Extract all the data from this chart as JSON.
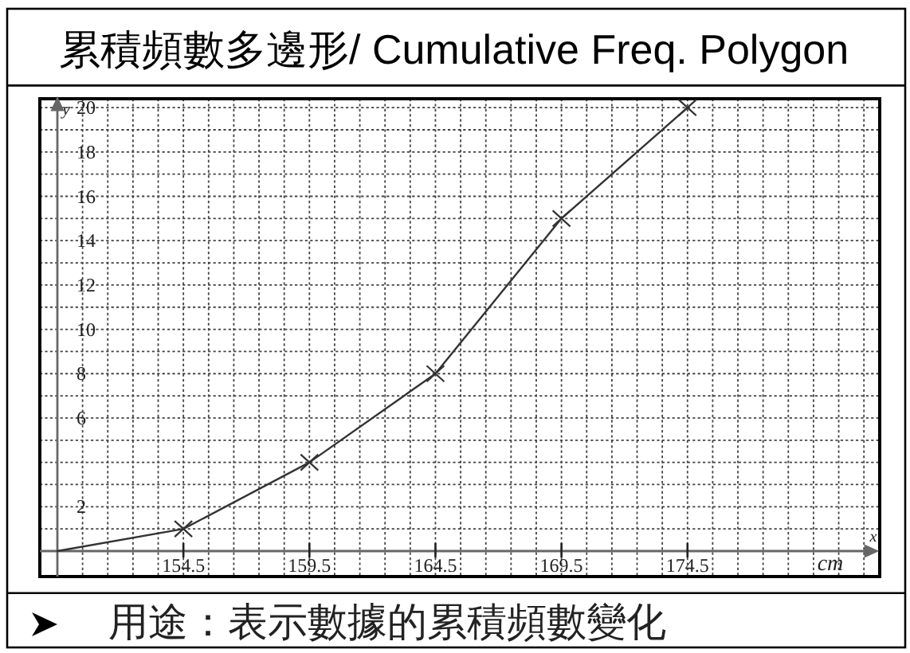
{
  "chart_data": {
    "type": "line",
    "title": "累積頻數多邊形/ Cumulative Freq. Polygon",
    "xlabel": "x",
    "ylabel": "y",
    "annotations": [
      "cm",
      "用途：表示數據的累積頻數變化"
    ],
    "series": [
      {
        "type": "line",
        "x": [
          149.5,
          154.5,
          159.5,
          164.5,
          169.5,
          174.5
        ],
        "values": [
          0,
          1,
          4,
          8,
          15,
          20
        ],
        "color": "#333333",
        "marker": "none"
      },
      {
        "type": "scatter",
        "x": [
          154.5,
          159.5,
          164.5,
          169.5,
          174.5
        ],
        "values": [
          1,
          4,
          8,
          15,
          20
        ],
        "color": "#333333",
        "marker": "cross"
      }
    ],
    "xlim": [
      149.5,
      182
    ],
    "ylim": [
      0,
      20.4
    ],
    "xticks": [
      {
        "value": 150.5,
        "label": null
      },
      {
        "value": 151.5,
        "label": null
      },
      {
        "value": 152.5,
        "label": null
      },
      {
        "value": 153.5,
        "label": null
      },
      154.5,
      {
        "value": 155.5,
        "label": null
      },
      {
        "value": 156.5,
        "label": null
      },
      {
        "value": 157.5,
        "label": null
      },
      {
        "value": 158.5,
        "label": null
      },
      159.5,
      {
        "value": 160.5,
        "label": null
      },
      {
        "value": 161.5,
        "label": null
      },
      {
        "value": 162.5,
        "label": null
      },
      {
        "value": 163.5,
        "label": null
      },
      164.5,
      {
        "value": 165.5,
        "label": null
      },
      {
        "value": 166.5,
        "label": null
      },
      {
        "value": 167.5,
        "label": null
      },
      {
        "value": 168.5,
        "label": null
      },
      169.5,
      {
        "value": 170.5,
        "label": null
      },
      {
        "value": 171.5,
        "label": null
      },
      {
        "value": 172.5,
        "label": null
      },
      {
        "value": 173.5,
        "label": null
      },
      174.5,
      {
        "value": 175.5,
        "label": null
      },
      {
        "value": 176.5,
        "label": null
      },
      {
        "value": 177.5,
        "label": null
      },
      {
        "value": 178.5,
        "label": null
      },
      {
        "value": 179.5,
        "label": null
      },
      {
        "value": 180.5,
        "label": null
      },
      {
        "value": 181.5,
        "label": null
      }
    ],
    "yticks": [
      {
        "value": 1,
        "label": null
      },
      2,
      {
        "value": 3,
        "label": null
      },
      {
        "value": 4,
        "label": null
      },
      {
        "value": 5,
        "label": null
      },
      6,
      {
        "value": 7,
        "label": null
      },
      8,
      {
        "value": 9,
        "label": null
      },
      10,
      {
        "value": 11,
        "label": null
      },
      12,
      {
        "value": 13,
        "label": null
      },
      14,
      {
        "value": 15,
        "label": null
      },
      16,
      {
        "value": 17,
        "label": null
      },
      18,
      {
        "value": 19,
        "label": null
      },
      20
    ],
    "grid": true
  }
}
